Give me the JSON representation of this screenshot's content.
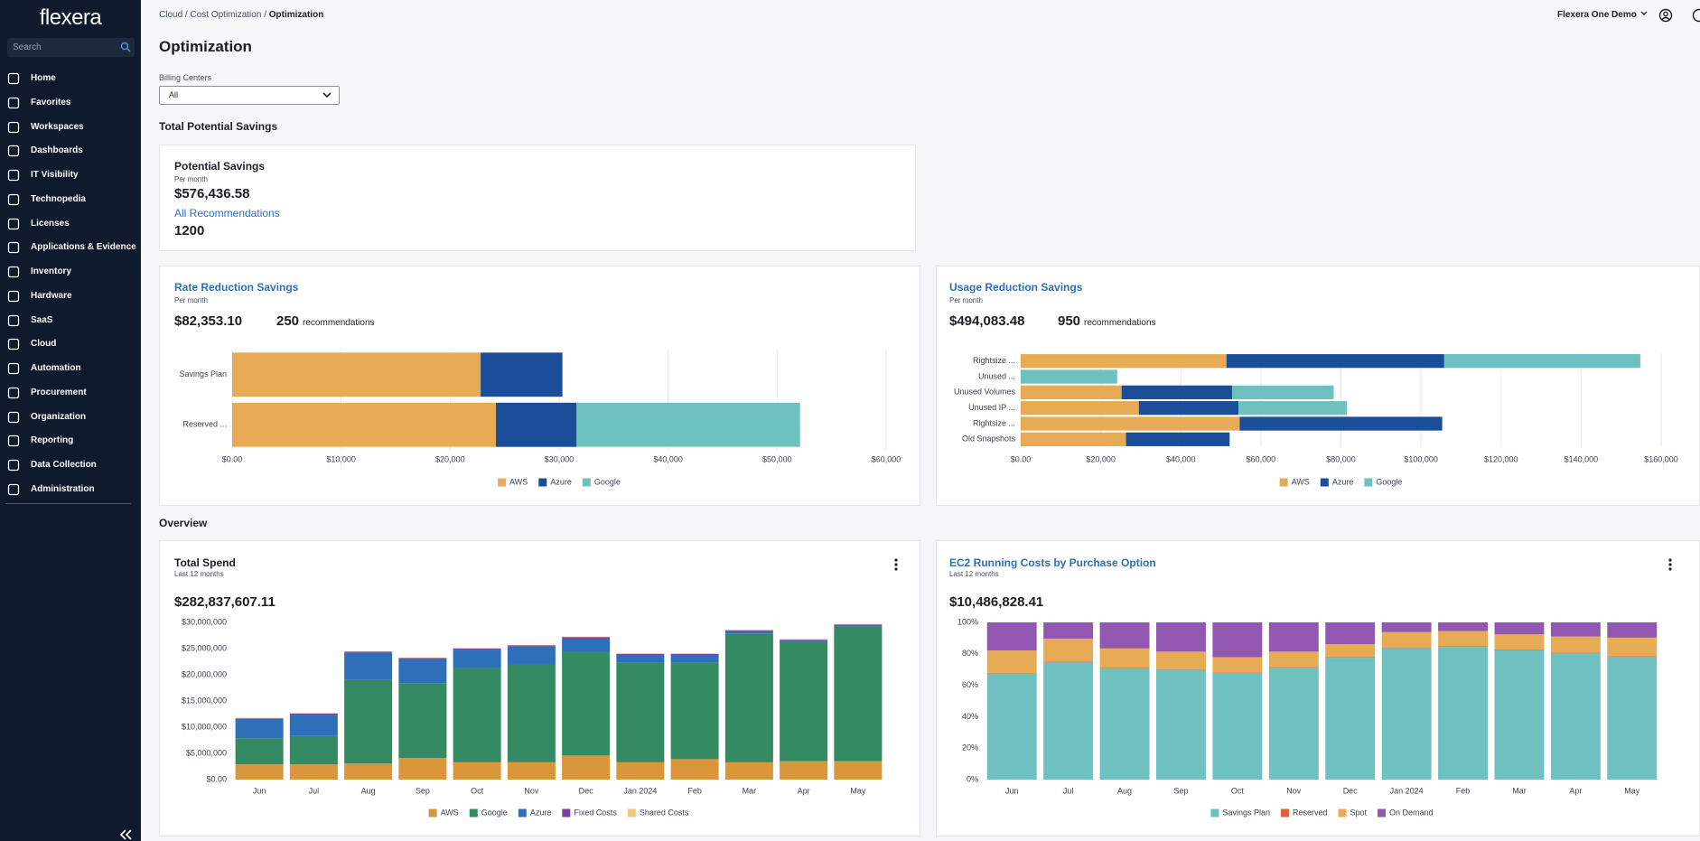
{
  "sidebar": {
    "brand": "flexera",
    "search_placeholder": "Search",
    "nav": [
      "Home",
      "Favorites",
      "Workspaces",
      "Dashboards",
      "IT Visibility",
      "Technopedia",
      "Licenses",
      "Applications & Evidence",
      "Inventory",
      "Hardware",
      "SaaS",
      "Cloud",
      "Automation",
      "Procurement",
      "Organization",
      "Reporting",
      "Data Collection",
      "Administration"
    ]
  },
  "header": {
    "breadcrumb": [
      "Cloud",
      "Cost Optimization",
      "Optimization"
    ],
    "separator": "/",
    "user": "Flexera One Demo"
  },
  "page": {
    "title": "Optimization",
    "filter_label": "Billing Centers",
    "filter_value": "All",
    "section_savings": "Total Potential Savings",
    "section_overview": "Overview"
  },
  "potential": {
    "title": "Potential Savings",
    "period": "Per month",
    "amount": "$576,436.58",
    "link": "All Recommendations",
    "count": 1200
  },
  "chart_data": [
    {
      "type": "bar",
      "orientation": "horizontal",
      "stacked": true,
      "grid": true,
      "legend": "bottom",
      "title": "Rate Reduction Savings",
      "subtitle": "Per month",
      "amount": "$82,353.10",
      "count": 250,
      "count_unit": "recommendations",
      "categories": [
        "Savings Plan",
        "Reserved ..."
      ],
      "series": [
        {
          "name": "AWS",
          "color": "#e8ab55",
          "values": [
            22800,
            24200
          ]
        },
        {
          "name": "Azure",
          "color": "#1a4e99",
          "values": [
            7500,
            7400
          ]
        },
        {
          "name": "Google",
          "color": "#6dc1be",
          "values": [
            0,
            20500
          ]
        }
      ],
      "xlim": [
        0,
        60000
      ],
      "xticks": [
        {
          "value": 0,
          "label": "$0.00"
        },
        {
          "value": 10000,
          "label": "$10,000"
        },
        {
          "value": 20000,
          "label": "$20,000"
        },
        {
          "value": 30000,
          "label": "$30,000"
        },
        {
          "value": 40000,
          "label": "$40,000"
        },
        {
          "value": 50000,
          "label": "$50,000"
        },
        {
          "value": 60000,
          "label": "$60,000"
        }
      ]
    },
    {
      "type": "bar",
      "orientation": "horizontal",
      "stacked": true,
      "grid": true,
      "legend": "bottom",
      "title": "Usage Reduction Savings",
      "subtitle": "Per month",
      "amount": "$494,083.48",
      "count": 950,
      "count_unit": "recommendations",
      "categories": [
        "Rightsize ...",
        "Unused ...",
        "Unused Volumes",
        "Unused IP ...",
        "Rightsize ...",
        "Old Snapshots"
      ],
      "series": [
        {
          "name": "AWS",
          "color": "#e8ab55",
          "values": [
            51400,
            0,
            25200,
            29500,
            54700,
            26300
          ]
        },
        {
          "name": "Azure",
          "color": "#1a4e99",
          "values": [
            54400,
            0,
            27600,
            24900,
            50600,
            25900
          ]
        },
        {
          "name": "Google",
          "color": "#6dc1be",
          "values": [
            49000,
            24100,
            25400,
            27100,
            0,
            0
          ]
        }
      ],
      "xlim": [
        0,
        160000
      ],
      "xticks": [
        {
          "value": 0,
          "label": "$0.00"
        },
        {
          "value": 20000,
          "label": "$20,000"
        },
        {
          "value": 40000,
          "label": "$40,000"
        },
        {
          "value": 60000,
          "label": "$60,000"
        },
        {
          "value": 80000,
          "label": "$80,000"
        },
        {
          "value": 100000,
          "label": "$100,000"
        },
        {
          "value": 120000,
          "label": "$120,000"
        },
        {
          "value": 140000,
          "label": "$140,000"
        },
        {
          "value": 160000,
          "label": "$160,000"
        }
      ]
    },
    {
      "type": "bar",
      "orientation": "vertical",
      "stacked": true,
      "grid": false,
      "legend": "bottom",
      "title": "Total Spend",
      "subtitle": "Last 12 months",
      "amount": "$282,837,607.11",
      "categories": [
        "Jun",
        "Jul",
        "Aug",
        "Sep",
        "Oct",
        "Nov",
        "Dec",
        "Jan 2024",
        "Feb",
        "Mar",
        "Apr",
        "May"
      ],
      "series": [
        {
          "name": "AWS",
          "color": "#d9963a",
          "values": [
            2900000,
            2900000,
            3100000,
            4100000,
            3300000,
            3300000,
            4600000,
            3300000,
            3900000,
            3300000,
            3500000,
            3500000
          ]
        },
        {
          "name": "Google",
          "color": "#338a63",
          "values": [
            5000000,
            5400000,
            15900000,
            14300000,
            18000000,
            18600000,
            19800000,
            19000000,
            18400000,
            24600000,
            22800000,
            25700000
          ]
        },
        {
          "name": "Azure",
          "color": "#2e6fba",
          "values": [
            3700000,
            4100000,
            5200000,
            4600000,
            3500000,
            3500000,
            2500000,
            1500000,
            1500000,
            400000,
            200000,
            200000
          ]
        },
        {
          "name": "Fixed Costs",
          "color": "#7a3f99",
          "values": [
            100000,
            200000,
            200000,
            200000,
            200000,
            200000,
            300000,
            200000,
            200000,
            200000,
            200000,
            200000
          ]
        },
        {
          "name": "Shared Costs",
          "color": "#f5c77e",
          "values": [
            100000,
            100000,
            100000,
            100000,
            100000,
            100000,
            100000,
            100000,
            100000,
            100000,
            100000,
            100000
          ]
        }
      ],
      "ylim": [
        0,
        30000000
      ],
      "yticks": [
        {
          "value": 0,
          "label": "$0.00"
        },
        {
          "value": 5000000,
          "label": "$5,000,000"
        },
        {
          "value": 10000000,
          "label": "$10,000,000"
        },
        {
          "value": 15000000,
          "label": "$15,000,000"
        },
        {
          "value": 20000000,
          "label": "$20,000,000"
        },
        {
          "value": 25000000,
          "label": "$25,000,000"
        },
        {
          "value": 30000000,
          "label": "$30,000,000"
        }
      ]
    },
    {
      "type": "bar",
      "orientation": "vertical",
      "stacked": true,
      "grid": false,
      "legend": "bottom",
      "title": "EC2 Running Costs by Purchase Option",
      "subtitle": "Last 12 months",
      "amount": "$10,486,828.41",
      "categories": [
        "Jun",
        "Jul",
        "Aug",
        "Sep",
        "Oct",
        "Nov",
        "Dec",
        "Jan 2024",
        "Feb",
        "Mar",
        "Apr",
        "May"
      ],
      "series": [
        {
          "name": "Savings Plan",
          "color": "#6fc0c0",
          "values": [
            67.2,
            74.8,
            70.6,
            69.9,
            67.9,
            71.3,
            77.5,
            83.7,
            84.4,
            82.4,
            80.3,
            78.2
          ]
        },
        {
          "name": "Reserved",
          "color": "#d9643a",
          "values": [
            0.4,
            0.4,
            0.4,
            0.4,
            0.4,
            0.4,
            0.4,
            0.4,
            0.4,
            0.4,
            0.4,
            0.4
          ]
        },
        {
          "name": "Spot",
          "color": "#e8ab55",
          "values": [
            14.5,
            14.5,
            12.4,
            11.1,
            9.6,
            9.7,
            8.3,
            9.7,
            9.7,
            9.6,
            10.3,
            11.7
          ]
        },
        {
          "name": "On Demand",
          "color": "#9257b0",
          "values": [
            17.9,
            10.3,
            16.6,
            18.6,
            22.1,
            18.6,
            13.8,
            6.2,
            5.5,
            7.6,
            9.0,
            9.7
          ]
        }
      ],
      "ylim": [
        0,
        100
      ],
      "yticks": [
        {
          "value": 0,
          "label": "0%"
        },
        {
          "value": 20,
          "label": "20%"
        },
        {
          "value": 40,
          "label": "40%"
        },
        {
          "value": 60,
          "label": "60%"
        },
        {
          "value": 80,
          "label": "80%"
        },
        {
          "value": 100,
          "label": "100%"
        }
      ]
    }
  ]
}
